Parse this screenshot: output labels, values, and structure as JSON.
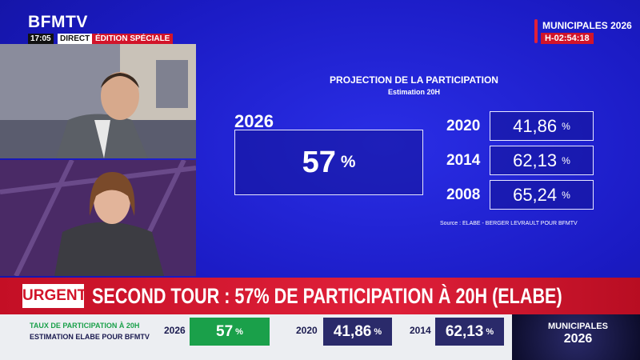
{
  "channel": {
    "logo": "BFMTV",
    "time": "17:05",
    "live": "DIRECT",
    "edition": "ÉDITION SPÉCIALE"
  },
  "event": {
    "title": "MUNICIPALES 2026",
    "countdown": "H-02:54:18"
  },
  "projection": {
    "title": "PROJECTION DE LA PARTICIPATION",
    "subtitle": "Estimation 20H",
    "main": {
      "year": "2026",
      "value": "57",
      "unit": "%"
    },
    "history": [
      {
        "year": "2020",
        "value": "41,86",
        "unit": "%"
      },
      {
        "year": "2014",
        "value": "62,13",
        "unit": "%"
      },
      {
        "year": "2008",
        "value": "65,24",
        "unit": "%"
      }
    ],
    "source": "Source : ELABE - BERGER LEVRAULT POUR BFMTV"
  },
  "breaking": {
    "label": "URGENT",
    "headline": "SECOND TOUR : 57% DE PARTICIPATION À 20H (ELABE)"
  },
  "ticker": {
    "line1": "TAUX DE PARTICIPATION À 20H",
    "line2": "ESTIMATION ELABE POUR BFMTV",
    "items": [
      {
        "year": "2026",
        "value": "57",
        "unit": "%"
      },
      {
        "year": "2020",
        "value": "41,86",
        "unit": "%"
      },
      {
        "year": "2014",
        "value": "62,13",
        "unit": "%"
      }
    ],
    "logo_line1": "MUNICIPALES",
    "logo_line2": "2026"
  }
}
